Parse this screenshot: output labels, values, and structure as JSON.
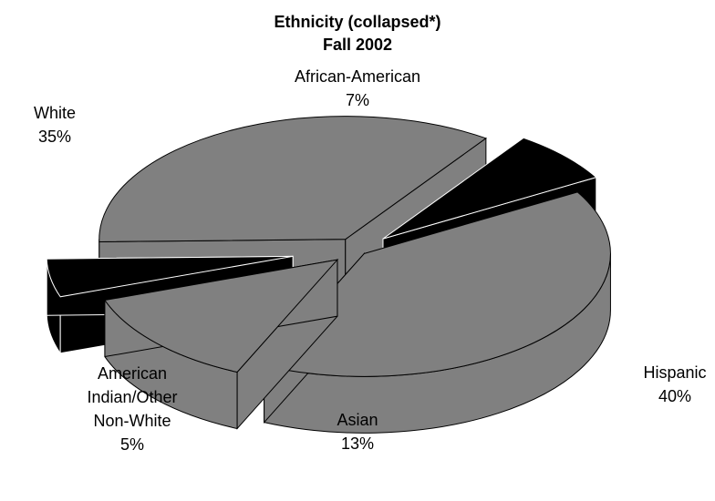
{
  "chart_data": {
    "type": "pie",
    "style": "3d-exploded",
    "title": "Ethnicity (collapsed*)",
    "subtitle": "Fall 2002",
    "slices": [
      {
        "label": "Hispanic",
        "value": 40,
        "value_label": "40%",
        "color": "#808080"
      },
      {
        "label": "Asian",
        "value": 13,
        "value_label": "13%",
        "color": "#808080"
      },
      {
        "label": "American Indian/Other Non-White",
        "label_lines": [
          "American",
          "Indian/Other",
          "Non-White"
        ],
        "value": 5,
        "value_label": "5%",
        "color": "#000000"
      },
      {
        "label": "White",
        "value": 35,
        "value_label": "35%",
        "color": "#808080"
      },
      {
        "label": "African-American",
        "value": 7,
        "value_label": "7%",
        "color": "#000000"
      }
    ],
    "legend": "none"
  }
}
